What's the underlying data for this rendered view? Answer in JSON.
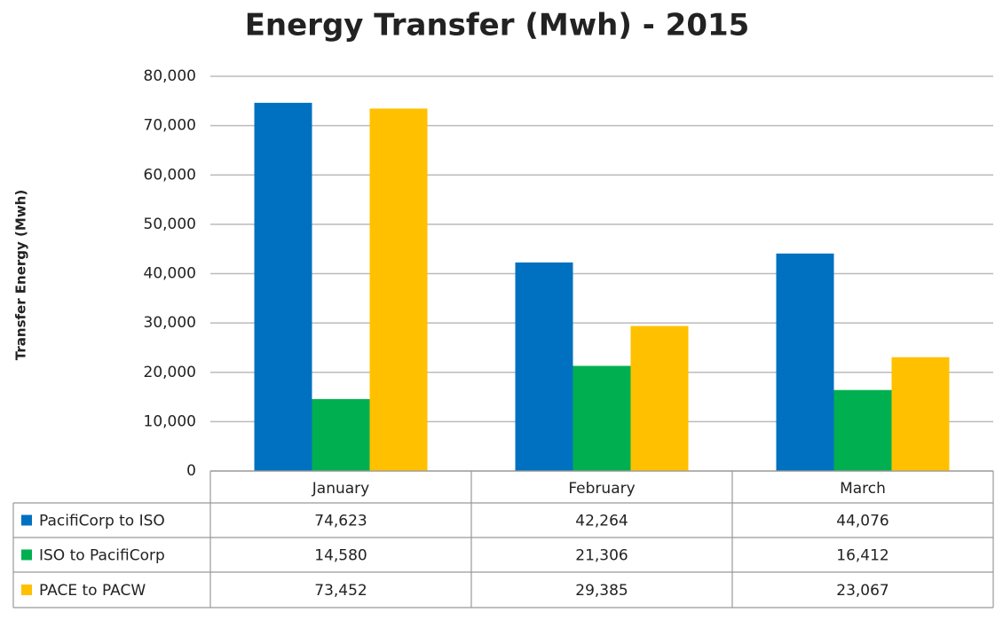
{
  "chart_data": {
    "type": "bar",
    "title": "Energy Transfer (Mwh) - 2015",
    "y_label": "Transfer Energy (Mwh)",
    "categories": [
      "January",
      "February",
      "March"
    ],
    "series": [
      {
        "name": "PacifiCorp to ISO",
        "color": "#0070c0",
        "values": [
          74623,
          42264,
          44076
        ],
        "value_labels": [
          "74,623",
          "42,264",
          "44,076"
        ]
      },
      {
        "name": "ISO to PacifiCorp",
        "color": "#00b050",
        "values": [
          14580,
          21306,
          16412
        ],
        "value_labels": [
          "14,580",
          "21,306",
          "16,412"
        ]
      },
      {
        "name": "PACE to PACW",
        "color": "#ffc000",
        "values": [
          73452,
          29385,
          23067
        ],
        "value_labels": [
          "73,452",
          "29,385",
          "23,067"
        ]
      }
    ],
    "ylim": [
      0,
      80000
    ],
    "yticks": [
      0,
      {
        "value": 10000,
        "label": "10,000"
      },
      {
        "value": 20000,
        "label": "20,000"
      },
      {
        "value": 30000,
        "label": "30,000"
      },
      {
        "value": 40000,
        "label": "40,000"
      },
      {
        "value": 50000,
        "label": "50,000"
      },
      {
        "value": 60000,
        "label": "60,000"
      },
      {
        "value": 70000,
        "label": "70,000"
      },
      {
        "value": 80000,
        "label": "80,000"
      }
    ],
    "grid": true
  }
}
